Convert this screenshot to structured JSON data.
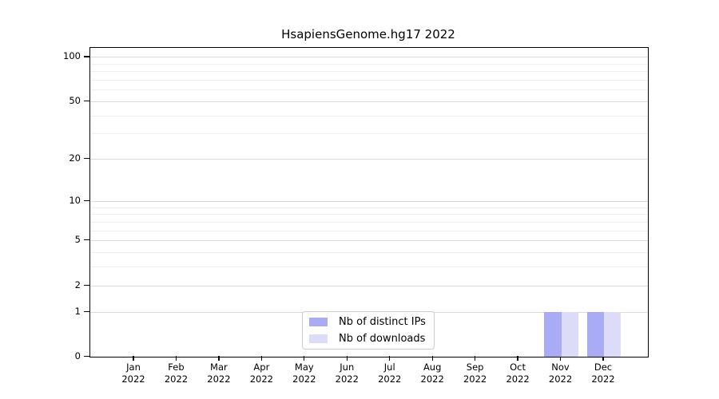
{
  "title": "HsapiensGenome.hg17 2022",
  "colors": {
    "background": "#ffffff",
    "axis": "#000000",
    "major_grid": "#d9d9d9",
    "minor_grid": "#efefef",
    "legend_border": "#cccccc",
    "distinct_ips_bar": "#a9abf5",
    "downloads_bar": "#dcdcf8"
  },
  "chart_data": {
    "type": "bar",
    "title": "HsapiensGenome.hg17 2022",
    "xlabel": "",
    "ylabel": "",
    "yscale": "log1p",
    "ylim": [
      0,
      115
    ],
    "yticks": [
      0,
      1,
      2,
      5,
      10,
      20,
      50,
      100
    ],
    "minor_yticks": [
      3,
      4,
      6,
      7,
      8,
      9,
      30,
      40,
      60,
      70,
      80,
      90
    ],
    "grid": "horizontal",
    "categories": [
      {
        "month": "Jan",
        "year": "2022"
      },
      {
        "month": "Feb",
        "year": "2022"
      },
      {
        "month": "Mar",
        "year": "2022"
      },
      {
        "month": "Apr",
        "year": "2022"
      },
      {
        "month": "May",
        "year": "2022"
      },
      {
        "month": "Jun",
        "year": "2022"
      },
      {
        "month": "Jul",
        "year": "2022"
      },
      {
        "month": "Aug",
        "year": "2022"
      },
      {
        "month": "Sep",
        "year": "2022"
      },
      {
        "month": "Oct",
        "year": "2022"
      },
      {
        "month": "Nov",
        "year": "2022"
      },
      {
        "month": "Dec",
        "year": "2022"
      }
    ],
    "series": [
      {
        "name": "Nb of distinct IPs",
        "color": "#a9abf5",
        "values": [
          0,
          0,
          0,
          0,
          0,
          0,
          0,
          0,
          0,
          0,
          1,
          1
        ]
      },
      {
        "name": "Nb of downloads",
        "color": "#dcdcf8",
        "values": [
          0,
          0,
          0,
          0,
          0,
          0,
          0,
          0,
          0,
          0,
          1,
          1
        ]
      }
    ],
    "legend": {
      "position": "bottom-center-inside",
      "entries": [
        "Nb of distinct IPs",
        "Nb of downloads"
      ]
    }
  }
}
